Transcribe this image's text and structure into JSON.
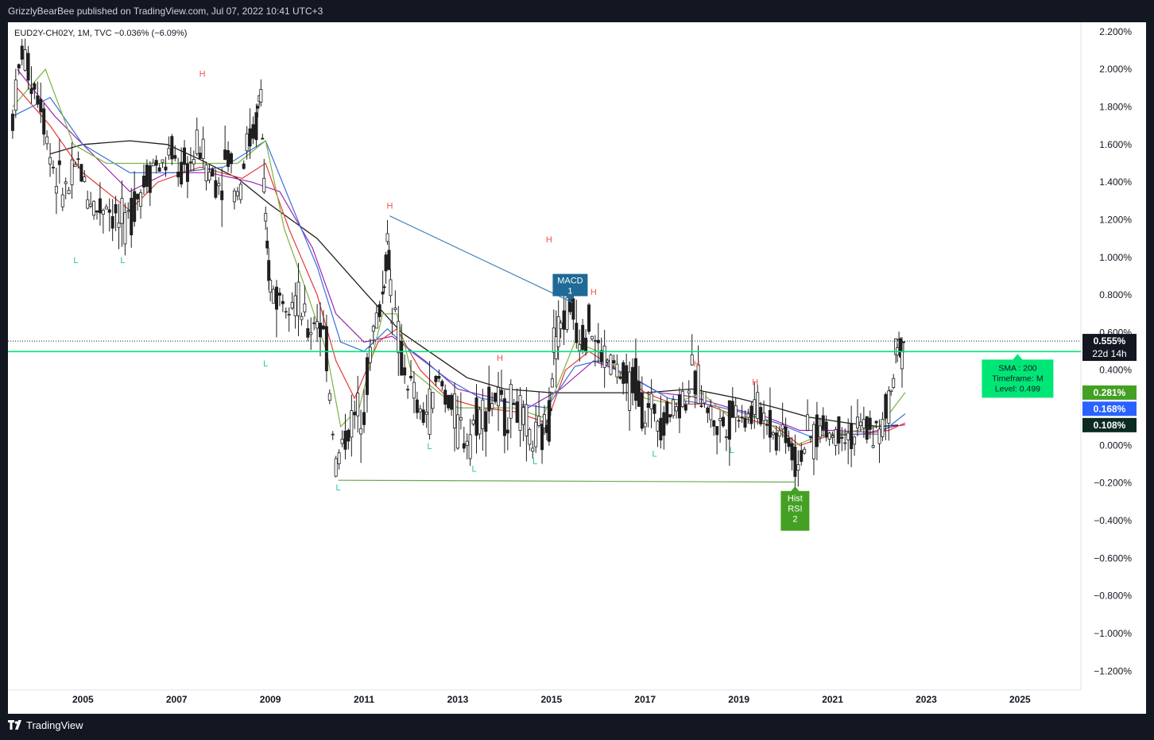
{
  "header": {
    "publisher_line": "GrizzlyBearBee published on TradingView.com, Jul 07, 2022 10:41 UTC+3"
  },
  "footer": {
    "brand": "TradingView"
  },
  "colors": {
    "background": "#131722",
    "chart_bg": "#ffffff",
    "candle": "#1f1f1f",
    "ema_green": "#7cb342",
    "ema_blue": "#3a6fd8",
    "ema_red": "#e53935",
    "ema_purple": "#9c27b0",
    "sma_black": "#1f1f1f",
    "level_line": "#00e676",
    "trend_blue": "#3d7fb5",
    "trend_green": "#6aa84f",
    "high_label": "#ef5350",
    "low_label": "#26c6a0",
    "macd_badge": "#1f6a96",
    "rsi_badge": "#44a023"
  },
  "chart_data": {
    "type": "candlestick",
    "symbol_line": "EUD2Y-CH02Y, 1M, TVC  −0.036% (−6.09%)",
    "y_unit": "%",
    "ylim": [
      -1.3,
      2.25
    ],
    "yticks": [
      "2.200%",
      "2.000%",
      "1.800%",
      "1.600%",
      "1.400%",
      "1.200%",
      "1.000%",
      "0.800%",
      "0.600%",
      "0.400%",
      "0.200%",
      "0.000%",
      "−0.200%",
      "−0.400%",
      "−0.600%",
      "−0.800%",
      "−1.000%",
      "−1.200%"
    ],
    "ytick_values": [
      2.2,
      2.0,
      1.8,
      1.6,
      1.4,
      1.2,
      1.0,
      0.8,
      0.6,
      0.4,
      0.2,
      0.0,
      -0.2,
      -0.4,
      -0.6,
      -0.8,
      -1.0,
      -1.2
    ],
    "xlim": [
      2003.4,
      2026.3
    ],
    "xticks": [
      "2005",
      "2007",
      "2009",
      "2011",
      "2013",
      "2015",
      "2017",
      "2019",
      "2021",
      "2023",
      "2025"
    ],
    "xtick_values": [
      2005,
      2007,
      2009,
      2011,
      2013,
      2015,
      2017,
      2019,
      2021,
      2023,
      2025
    ],
    "close_path": [
      [
        2003.5,
        1.75
      ],
      [
        2003.7,
        2.1
      ],
      [
        2003.9,
        1.95
      ],
      [
        2004.1,
        1.85
      ],
      [
        2004.3,
        1.55
      ],
      [
        2004.5,
        1.38
      ],
      [
        2004.7,
        1.35
      ],
      [
        2004.9,
        1.5
      ],
      [
        2005.1,
        1.35
      ],
      [
        2005.3,
        1.25
      ],
      [
        2005.5,
        1.3
      ],
      [
        2005.7,
        1.2
      ],
      [
        2005.9,
        1.15
      ],
      [
        2006.1,
        1.3
      ],
      [
        2006.3,
        1.4
      ],
      [
        2006.5,
        1.5
      ],
      [
        2006.7,
        1.48
      ],
      [
        2006.9,
        1.55
      ],
      [
        2007.1,
        1.45
      ],
      [
        2007.3,
        1.5
      ],
      [
        2007.5,
        1.6
      ],
      [
        2007.7,
        1.45
      ],
      [
        2007.9,
        1.4
      ],
      [
        2008.1,
        1.55
      ],
      [
        2008.3,
        1.35
      ],
      [
        2008.5,
        1.6
      ],
      [
        2008.7,
        1.7
      ],
      [
        2008.8,
        1.9
      ],
      [
        2008.9,
        1.1
      ],
      [
        2009.0,
        0.85
      ],
      [
        2009.2,
        0.78
      ],
      [
        2009.4,
        0.85
      ],
      [
        2009.6,
        0.75
      ],
      [
        2009.8,
        0.6
      ],
      [
        2010.0,
        0.7
      ],
      [
        2010.2,
        0.5
      ],
      [
        2010.4,
        -0.1
      ],
      [
        2010.6,
        0.05
      ],
      [
        2010.8,
        0.15
      ],
      [
        2011.0,
        0.25
      ],
      [
        2011.2,
        0.6
      ],
      [
        2011.4,
        0.8
      ],
      [
        2011.5,
        1.1
      ],
      [
        2011.6,
        0.75
      ],
      [
        2011.8,
        0.45
      ],
      [
        2012.0,
        0.3
      ],
      [
        2012.2,
        0.15
      ],
      [
        2012.4,
        0.2
      ],
      [
        2012.6,
        0.35
      ],
      [
        2012.8,
        0.25
      ],
      [
        2013.0,
        0.1
      ],
      [
        2013.2,
        0.05
      ],
      [
        2013.4,
        0.15
      ],
      [
        2013.6,
        0.2
      ],
      [
        2013.8,
        0.25
      ],
      [
        2014.0,
        0.15
      ],
      [
        2014.2,
        0.25
      ],
      [
        2014.4,
        0.1
      ],
      [
        2014.6,
        0.02
      ],
      [
        2014.8,
        0.05
      ],
      [
        2014.95,
        0.15
      ],
      [
        2015.05,
        0.55
      ],
      [
        2015.2,
        0.65
      ],
      [
        2015.4,
        0.75
      ],
      [
        2015.6,
        0.6
      ],
      [
        2015.8,
        0.65
      ],
      [
        2016.0,
        0.5
      ],
      [
        2016.2,
        0.45
      ],
      [
        2016.4,
        0.4
      ],
      [
        2016.6,
        0.3
      ],
      [
        2016.8,
        0.35
      ],
      [
        2017.0,
        0.15
      ],
      [
        2017.2,
        0.2
      ],
      [
        2017.4,
        0.15
      ],
      [
        2017.6,
        0.2
      ],
      [
        2017.8,
        0.25
      ],
      [
        2018.0,
        0.35
      ],
      [
        2018.2,
        0.3
      ],
      [
        2018.4,
        0.15
      ],
      [
        2018.6,
        0.1
      ],
      [
        2018.8,
        0.15
      ],
      [
        2019.0,
        0.2
      ],
      [
        2019.2,
        0.15
      ],
      [
        2019.4,
        0.2
      ],
      [
        2019.6,
        0.15
      ],
      [
        2019.8,
        0.05
      ],
      [
        2020.0,
        0.1
      ],
      [
        2020.2,
        -0.1
      ],
      [
        2020.4,
        0.0
      ],
      [
        2020.6,
        0.05
      ],
      [
        2020.8,
        0.1
      ],
      [
        2021.0,
        0.05
      ],
      [
        2021.2,
        0.1
      ],
      [
        2021.4,
        0.05
      ],
      [
        2021.6,
        0.08
      ],
      [
        2021.8,
        0.1
      ],
      [
        2022.0,
        0.05
      ],
      [
        2022.2,
        0.2
      ],
      [
        2022.35,
        0.45
      ],
      [
        2022.45,
        0.55
      ],
      [
        2022.55,
        0.52
      ]
    ],
    "sma_200_path": [
      [
        2004.3,
        1.55
      ],
      [
        2005.0,
        1.6
      ],
      [
        2006.0,
        1.62
      ],
      [
        2006.8,
        1.6
      ],
      [
        2007.5,
        1.52
      ],
      [
        2008.3,
        1.42
      ],
      [
        2009.0,
        1.28
      ],
      [
        2010.0,
        1.1
      ],
      [
        2011.0,
        0.82
      ],
      [
        2011.8,
        0.6
      ],
      [
        2012.5,
        0.48
      ],
      [
        2013.2,
        0.36
      ],
      [
        2014.0,
        0.3
      ],
      [
        2015.0,
        0.28
      ],
      [
        2016.0,
        0.28
      ],
      [
        2017.0,
        0.28
      ],
      [
        2018.0,
        0.3
      ],
      [
        2019.0,
        0.25
      ],
      [
        2019.8,
        0.2
      ],
      [
        2020.5,
        0.15
      ],
      [
        2021.3,
        0.12
      ],
      [
        2022.0,
        0.1
      ],
      [
        2022.4,
        0.108
      ]
    ],
    "ema_fast_path": [
      [
        2003.5,
        1.8
      ],
      [
        2004.2,
        2.0
      ],
      [
        2004.8,
        1.6
      ],
      [
        2005.5,
        1.5
      ],
      [
        2006.5,
        1.5
      ],
      [
        2007.5,
        1.5
      ],
      [
        2008.3,
        1.5
      ],
      [
        2008.9,
        1.62
      ],
      [
        2009.3,
        1.15
      ],
      [
        2009.8,
        0.8
      ],
      [
        2010.2,
        0.5
      ],
      [
        2010.5,
        0.1
      ],
      [
        2010.9,
        0.2
      ],
      [
        2011.4,
        0.7
      ],
      [
        2011.7,
        0.7
      ],
      [
        2012.0,
        0.4
      ],
      [
        2012.5,
        0.3
      ],
      [
        2013.0,
        0.2
      ],
      [
        2013.6,
        0.2
      ],
      [
        2014.2,
        0.2
      ],
      [
        2014.8,
        0.15
      ],
      [
        2015.1,
        0.3
      ],
      [
        2015.5,
        0.55
      ],
      [
        2016.0,
        0.5
      ],
      [
        2016.5,
        0.38
      ],
      [
        2017.0,
        0.25
      ],
      [
        2017.6,
        0.22
      ],
      [
        2018.2,
        0.28
      ],
      [
        2018.8,
        0.15
      ],
      [
        2019.5,
        0.15
      ],
      [
        2020.2,
        0.0
      ],
      [
        2020.7,
        0.05
      ],
      [
        2021.3,
        0.07
      ],
      [
        2022.0,
        0.1
      ],
      [
        2022.3,
        0.2
      ],
      [
        2022.55,
        0.281
      ]
    ],
    "ema_mid_path": [
      [
        2003.5,
        1.75
      ],
      [
        2004.3,
        1.85
      ],
      [
        2005.0,
        1.6
      ],
      [
        2006.0,
        1.45
      ],
      [
        2007.0,
        1.45
      ],
      [
        2008.0,
        1.48
      ],
      [
        2008.9,
        1.62
      ],
      [
        2009.5,
        1.25
      ],
      [
        2010.0,
        0.95
      ],
      [
        2010.5,
        0.55
      ],
      [
        2011.0,
        0.5
      ],
      [
        2011.5,
        0.62
      ],
      [
        2012.0,
        0.5
      ],
      [
        2012.8,
        0.35
      ],
      [
        2013.5,
        0.25
      ],
      [
        2014.3,
        0.22
      ],
      [
        2014.9,
        0.2
      ],
      [
        2015.5,
        0.42
      ],
      [
        2016.0,
        0.45
      ],
      [
        2016.8,
        0.35
      ],
      [
        2017.5,
        0.25
      ],
      [
        2018.3,
        0.22
      ],
      [
        2019.0,
        0.18
      ],
      [
        2019.8,
        0.12
      ],
      [
        2020.5,
        0.05
      ],
      [
        2021.2,
        0.06
      ],
      [
        2022.0,
        0.06
      ],
      [
        2022.55,
        0.168
      ]
    ],
    "ema_slow_red_path": [
      [
        2003.6,
        1.9
      ],
      [
        2004.3,
        1.7
      ],
      [
        2005.0,
        1.45
      ],
      [
        2006.0,
        1.25
      ],
      [
        2006.6,
        1.4
      ],
      [
        2007.5,
        1.48
      ],
      [
        2008.4,
        1.42
      ],
      [
        2008.9,
        1.5
      ],
      [
        2009.4,
        1.15
      ],
      [
        2010.0,
        0.8
      ],
      [
        2010.4,
        0.45
      ],
      [
        2010.8,
        0.25
      ],
      [
        2011.3,
        0.55
      ],
      [
        2011.7,
        0.62
      ],
      [
        2012.2,
        0.4
      ],
      [
        2012.8,
        0.25
      ],
      [
        2013.5,
        0.2
      ],
      [
        2014.2,
        0.18
      ],
      [
        2014.9,
        0.12
      ],
      [
        2015.3,
        0.4
      ],
      [
        2015.8,
        0.5
      ],
      [
        2016.3,
        0.42
      ],
      [
        2017.0,
        0.28
      ],
      [
        2017.6,
        0.22
      ],
      [
        2018.3,
        0.22
      ],
      [
        2019.0,
        0.15
      ],
      [
        2019.8,
        0.1
      ],
      [
        2020.3,
        0.0
      ],
      [
        2020.9,
        0.05
      ],
      [
        2021.6,
        0.06
      ],
      [
        2022.2,
        0.08
      ],
      [
        2022.55,
        0.12
      ]
    ],
    "ema_slowest_purple_path": [
      [
        2003.6,
        2.0
      ],
      [
        2004.4,
        1.75
      ],
      [
        2005.2,
        1.55
      ],
      [
        2006.0,
        1.35
      ],
      [
        2006.8,
        1.45
      ],
      [
        2007.7,
        1.45
      ],
      [
        2008.6,
        1.4
      ],
      [
        2009.2,
        1.35
      ],
      [
        2009.9,
        1.05
      ],
      [
        2010.4,
        0.7
      ],
      [
        2011.0,
        0.55
      ],
      [
        2011.6,
        0.58
      ],
      [
        2012.3,
        0.45
      ],
      [
        2013.0,
        0.3
      ],
      [
        2013.8,
        0.25
      ],
      [
        2014.5,
        0.2
      ],
      [
        2015.2,
        0.3
      ],
      [
        2015.9,
        0.45
      ],
      [
        2016.6,
        0.38
      ],
      [
        2017.3,
        0.28
      ],
      [
        2018.0,
        0.26
      ],
      [
        2018.8,
        0.2
      ],
      [
        2019.6,
        0.15
      ],
      [
        2020.3,
        0.08
      ],
      [
        2021.0,
        0.08
      ],
      [
        2021.8,
        0.07
      ],
      [
        2022.3,
        0.1
      ],
      [
        2022.55,
        0.11
      ]
    ],
    "high_markers": [
      {
        "label": "H",
        "x": 2007.55,
        "y": 1.96
      },
      {
        "label": "H",
        "x": 2011.55,
        "y": 1.26
      },
      {
        "label": "H",
        "x": 2014.95,
        "y": 1.08
      },
      {
        "label": "H",
        "x": 2015.9,
        "y": 0.8
      },
      {
        "label": "H",
        "x": 2013.9,
        "y": 0.45
      },
      {
        "label": "H",
        "x": 2018.1,
        "y": 0.42
      },
      {
        "label": "H",
        "x": 2019.35,
        "y": 0.32
      }
    ],
    "low_markers": [
      {
        "label": "L",
        "x": 2004.85,
        "y": 0.97
      },
      {
        "label": "L",
        "x": 2005.85,
        "y": 0.97
      },
      {
        "label": "L",
        "x": 2008.9,
        "y": 0.42
      },
      {
        "label": "L",
        "x": 2010.45,
        "y": -0.24
      },
      {
        "label": "L",
        "x": 2012.4,
        "y": -0.02
      },
      {
        "label": "L",
        "x": 2013.35,
        "y": -0.14
      },
      {
        "label": "L",
        "x": 2014.65,
        "y": -0.1
      },
      {
        "label": "L",
        "x": 2017.2,
        "y": -0.06
      },
      {
        "label": "L",
        "x": 2018.85,
        "y": -0.04
      }
    ],
    "trendlines": [
      {
        "name": "resistance",
        "points": [
          [
            2011.55,
            1.22
          ],
          [
            2015.45,
            0.76
          ]
        ]
      },
      {
        "name": "support",
        "points": [
          [
            2010.45,
            -0.185
          ],
          [
            2020.2,
            -0.195
          ]
        ]
      }
    ],
    "level_line_value": 0.499,
    "current_price_value": 0.555,
    "price_labels": {
      "current": "0.555%",
      "countdown": "22d 14h",
      "ema_green": "0.281%",
      "ema_blue": "0.168%",
      "sma_black": "0.108%"
    },
    "sma_box": {
      "line1": "SMA : 200",
      "line2": "Timeframe: M",
      "line3": "Level: 0.499"
    },
    "badges": {
      "macd_line1": "MACD",
      "macd_line2": "1",
      "rsi_line1": "Hist",
      "rsi_line2": "RSI",
      "rsi_line3": "2"
    },
    "badge_positions": {
      "macd": {
        "x": 2015.4,
        "y": 0.76
      },
      "rsi": {
        "x": 2020.2,
        "y": -0.2
      }
    },
    "sma_box_anchor": {
      "x": 2024.95,
      "y": 0.499
    }
  }
}
